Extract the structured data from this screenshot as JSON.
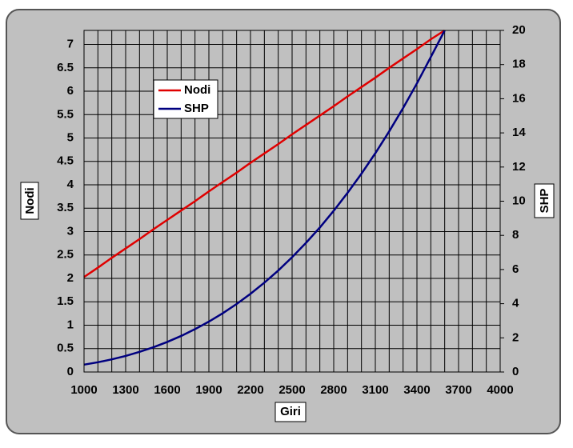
{
  "chart_data": {
    "type": "line",
    "x_label": "Giri",
    "y_label": "Nodi",
    "y2_label": "SHP",
    "x": [
      1000,
      1100,
      1200,
      1300,
      1400,
      1500,
      1600,
      1700,
      1800,
      1900,
      2000,
      2100,
      2200,
      2300,
      2400,
      2500,
      2600,
      2700,
      2800,
      2900,
      3000,
      3100,
      3200,
      3300,
      3400,
      3500,
      3600
    ],
    "series": [
      {
        "name": "Nodi",
        "color": "#e00000",
        "values": [
          2.03,
          2.23,
          2.44,
          2.64,
          2.84,
          3.05,
          3.25,
          3.45,
          3.65,
          3.86,
          4.06,
          4.26,
          4.47,
          4.67,
          4.87,
          5.08,
          5.28,
          5.48,
          5.68,
          5.89,
          6.09,
          6.29,
          6.5,
          6.7,
          6.9,
          7.11,
          7.3
        ]
      },
      {
        "name": "SHP",
        "color": "#000080",
        "axis": "y2",
        "values": [
          0.43,
          0.57,
          0.74,
          0.94,
          1.18,
          1.45,
          1.76,
          2.11,
          2.51,
          2.95,
          3.44,
          3.98,
          4.58,
          5.23,
          5.94,
          6.72,
          7.56,
          8.46,
          9.44,
          10.49,
          11.61,
          12.81,
          14.09,
          15.45,
          16.9,
          18.44,
          20
        ]
      }
    ],
    "xlim": [
      1000,
      4000
    ],
    "xticks": [
      1000,
      1300,
      1600,
      1900,
      2200,
      2500,
      2800,
      3100,
      3400,
      3700,
      4000
    ],
    "x_minor_gridlines": [
      1100,
      1200,
      1400,
      1500,
      1700,
      1800,
      2000,
      2100,
      2300,
      2400,
      2600,
      2700,
      2900,
      3000,
      3200,
      3300,
      3500,
      3600,
      3800,
      3900
    ],
    "ylim": [
      0,
      7.3
    ],
    "yticks": [
      0,
      0.5,
      1,
      1.5,
      2,
      2.5,
      3,
      3.5,
      4,
      4.5,
      5,
      5.5,
      6,
      6.5,
      7
    ],
    "y2lim": [
      0,
      20
    ],
    "y2ticks": [
      0,
      2,
      4,
      6,
      8,
      10,
      12,
      14,
      16,
      18,
      20
    ],
    "grid": true,
    "legend": "upper left"
  }
}
